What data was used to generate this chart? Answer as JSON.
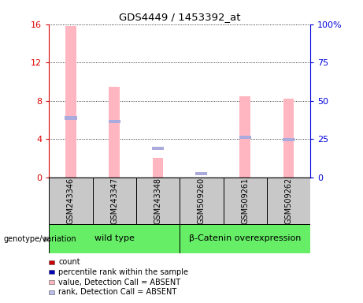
{
  "title": "GDS4449 / 1453392_at",
  "samples": [
    "GSM243346",
    "GSM243347",
    "GSM243348",
    "GSM509260",
    "GSM509261",
    "GSM509262"
  ],
  "pink_bars": [
    15.8,
    9.5,
    2.0,
    0.0,
    8.5,
    8.2
  ],
  "blue_markers_left": [
    6.2,
    5.8,
    3.0,
    0.4,
    4.2,
    3.9
  ],
  "groups": [
    {
      "label": "wild type",
      "indices": [
        0,
        1,
        2
      ],
      "color": "#66EE66"
    },
    {
      "label": "β-Catenin overexpression",
      "indices": [
        3,
        4,
        5
      ],
      "color": "#66EE66"
    }
  ],
  "ylim_left": [
    0,
    16
  ],
  "ylim_right": [
    0,
    100
  ],
  "yticks_left": [
    0,
    4,
    8,
    12,
    16
  ],
  "ytick_labels_left": [
    "0",
    "4",
    "8",
    "12",
    "16"
  ],
  "yticks_right": [
    0,
    25,
    50,
    75,
    100
  ],
  "ytick_labels_right": [
    "0",
    "25",
    "50",
    "75",
    "100%"
  ],
  "pink_color": "#FFB6C1",
  "blue_color": "#AAAADD",
  "red_color": "#DD0000",
  "dark_blue_color": "#0000DD",
  "bg_sample_row": "#C8C8C8",
  "genotype_label": "genotype/variation",
  "legend_items": [
    {
      "color": "#CC0000",
      "label": "count"
    },
    {
      "color": "#0000BB",
      "label": "percentile rank within the sample"
    },
    {
      "color": "#FFB6C1",
      "label": "value, Detection Call = ABSENT"
    },
    {
      "color": "#BBBBEE",
      "label": "rank, Detection Call = ABSENT"
    }
  ],
  "bar_width": 0.25
}
